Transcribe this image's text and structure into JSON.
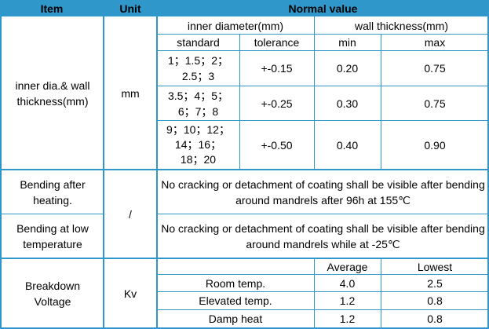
{
  "header": {
    "item": "Item",
    "unit": "Unit",
    "normal_value": "Normal value"
  },
  "dimensions": {
    "label": "inner dia.& wall thickness(mm)",
    "unit": "mm",
    "inner_diameter_header": "inner diameter(mm)",
    "wall_thickness_header": "wall thickness(mm)",
    "sub_headers": {
      "standard": "standard",
      "tolerance": "tolerance",
      "min": "min",
      "max": "max"
    },
    "rows": [
      {
        "standard_line1": "1；1.5；2；",
        "standard_line2": "2.5；3",
        "standard_line3": "",
        "tolerance": "+-0.15",
        "min": "0.20",
        "max": "0.75"
      },
      {
        "standard_line1": "3.5；4；5；",
        "standard_line2": "6；7；8",
        "standard_line3": "",
        "tolerance": "+-0.25",
        "min": "0.30",
        "max": "0.75"
      },
      {
        "standard_line1": "9；10；12；",
        "standard_line2": "14；16；",
        "standard_line3": "18；20",
        "tolerance": "+-0.50",
        "min": "0.40",
        "max": "0.90"
      }
    ]
  },
  "bending": {
    "unit": "/",
    "after_heating_label": "Bending after heating.",
    "after_heating_value": "No cracking or detachment of coating shall be visible after bending around mandrels after 96h at 155℃",
    "low_temp_label": "Bending at low temperature",
    "low_temp_value": "No cracking or detachment of coating shall be visible after bending around mandrels while at -25℃"
  },
  "breakdown": {
    "label": "Breakdown Voltage",
    "unit": "Kv",
    "col_average": "Average",
    "col_lowest": "Lowest",
    "rows": [
      {
        "condition": "Room temp.",
        "average": "4.0",
        "lowest": "2.5"
      },
      {
        "condition": "Elevated temp.",
        "average": "1.2",
        "lowest": "0.8"
      },
      {
        "condition": "Damp heat",
        "average": "1.2",
        "lowest": "0.8"
      }
    ]
  },
  "colors": {
    "header_bg": "#2f97c9",
    "grid_line": "#2f97c9",
    "text": "#000000"
  }
}
